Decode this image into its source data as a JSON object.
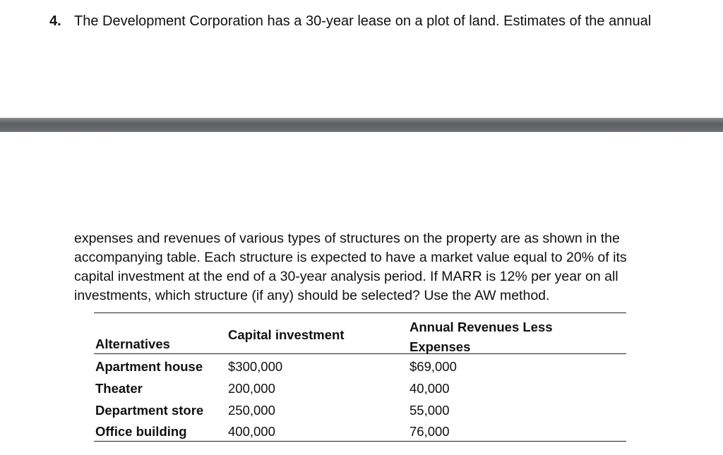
{
  "problem": {
    "number": "4.",
    "first_line": "The Development Corporation has a 30-year lease on a plot of land. Estimates of the annual",
    "continued_lines": [
      "expenses and revenues of various types of structures on the property are as shown in the",
      "accompanying table.  Each structure is expected to have a market value equal to 20% of its",
      "capital investment at the end of a 30-year analysis period. If MARR is 12% per year on all",
      "investments, which structure (if any) should be selected? Use the AW method."
    ]
  },
  "table": {
    "headers": [
      "Alternatives",
      "Capital investment",
      "Annual Revenues Less Expenses"
    ],
    "rows": [
      [
        "Apartment house",
        "$300,000",
        "$69,000"
      ],
      [
        "Theater",
        "200,000",
        "40,000"
      ],
      [
        "Department store",
        "250,000",
        "55,000"
      ],
      [
        "Office building",
        "400,000",
        "76,000"
      ]
    ]
  }
}
